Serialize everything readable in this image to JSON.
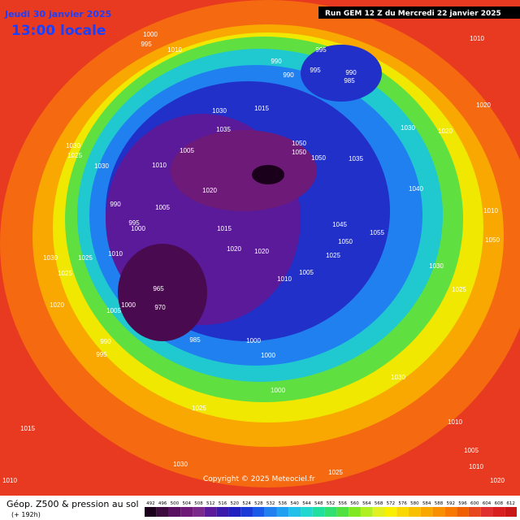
{
  "header": {
    "valid_date": "Jeudi 30 janvier 2025",
    "valid_time": "13:00 locale",
    "run": "Run GEM 12 Z du Mercredi 22 janvier 2025"
  },
  "footer": {
    "title": "Géop. Z500 & pression au sol",
    "lead": "(+ 192h)",
    "copyright": "Copyright © 2025 Meteociel.fr"
  },
  "colorbar": {
    "values": [
      492,
      496,
      500,
      504,
      508,
      512,
      516,
      520,
      524,
      528,
      532,
      536,
      540,
      544,
      548,
      552,
      556,
      560,
      564,
      568,
      572,
      576,
      580,
      584,
      588,
      592,
      596,
      600,
      604,
      608,
      612
    ],
    "colors": [
      "#1a001a",
      "#3d0a3d",
      "#5a1060",
      "#6e1a78",
      "#7a2a8a",
      "#5a1a9a",
      "#3a1aaa",
      "#2020c0",
      "#1a3ad8",
      "#1a5ae8",
      "#2080f0",
      "#20a0f0",
      "#20c0e8",
      "#20d8d0",
      "#20e0a0",
      "#30e070",
      "#50e040",
      "#80e820",
      "#b0f020",
      "#e0f020",
      "#f8f000",
      "#f8d800",
      "#f8c000",
      "#f8a800",
      "#f89000",
      "#f87800",
      "#f06000",
      "#e84820",
      "#e03030",
      "#d82020",
      "#c81818"
    ]
  },
  "isobar_labels": [
    1000,
    995,
    1010,
    990,
    995,
    990,
    995,
    990,
    985,
    1010,
    1020,
    1030,
    1020,
    1015,
    1030,
    1035,
    1030,
    1025,
    1030,
    1010,
    1005,
    1050,
    1050,
    1050,
    1035,
    1040,
    1020,
    1005,
    990,
    995,
    1000,
    1015,
    1020,
    1020,
    1045,
    1055,
    1050,
    1025,
    1030,
    1050,
    1010,
    1010,
    1030,
    1025,
    1025,
    1020,
    965,
    970,
    1000,
    1005,
    985,
    990,
    995,
    1005,
    1010,
    1000,
    1000,
    1000,
    1030,
    1025,
    1015,
    1010,
    1005,
    1010,
    1020,
    1025,
    1030,
    1010,
    1025
  ]
}
